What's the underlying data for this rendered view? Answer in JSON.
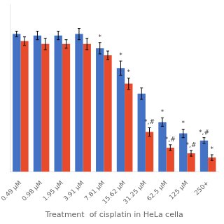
{
  "chart_data": {
    "type": "bar",
    "categories": [
      "0.49 μM",
      "0.98 μM",
      "1.95 μM",
      "3.91 μM",
      "7.81 μM",
      "15.62 μM",
      "31.25 μM",
      "62.5 μM",
      "125 μM",
      "250+"
    ],
    "series": [
      {
        "color": "#4472C4",
        "values": [
          97,
          96,
          96,
          97,
          87,
          73,
          55,
          35,
          27,
          22
        ],
        "errors": [
          2,
          3,
          3,
          4,
          4,
          5,
          4,
          3,
          3,
          2
        ],
        "annotations": [
          null,
          null,
          null,
          null,
          "*",
          "*",
          null,
          "*",
          "*",
          "*,#"
        ]
      },
      {
        "color": "#E84A2C",
        "values": [
          92,
          90,
          90,
          90,
          82,
          62,
          28,
          17,
          13,
          10
        ],
        "errors": [
          3,
          4,
          3,
          4,
          3,
          4,
          3,
          2,
          2,
          2
        ],
        "annotations": [
          null,
          null,
          null,
          null,
          null,
          "*",
          "*,#",
          "*,#",
          "*,#",
          "*"
        ]
      }
    ],
    "xlabel": "Treatment  of cisplatin in HeLa cella",
    "ylim": [
      0,
      118
    ],
    "grid": false,
    "tick_labels": "x"
  }
}
